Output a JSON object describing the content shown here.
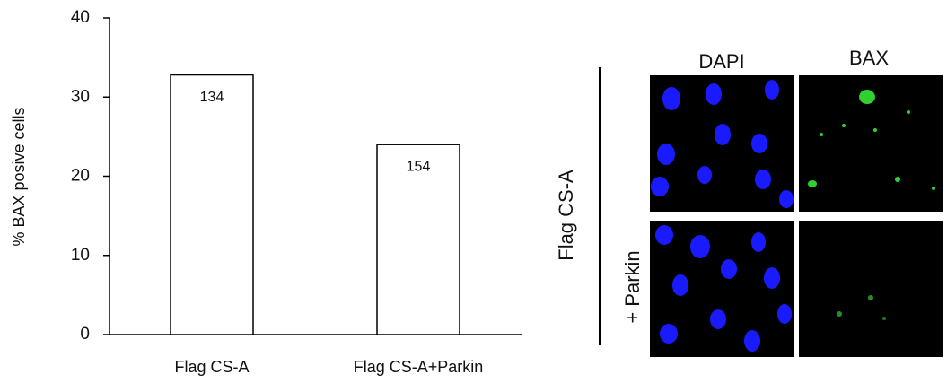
{
  "chart_data": {
    "type": "bar",
    "y_label": "% BAX posive cells",
    "categories": [
      "Flag CS-A",
      "Flag CS-A+Parkin"
    ],
    "values": [
      32.8,
      24
    ],
    "annotations": [
      "134",
      "154"
    ],
    "color": "#ffffff",
    "ylim": [
      0,
      40
    ],
    "yticks": [
      0,
      10,
      20,
      30,
      40
    ],
    "grid": false
  },
  "micrograph": {
    "columns": [
      "DAPI",
      "BAX"
    ],
    "row_labels": [
      "Flag CS-A",
      "+ Parkin"
    ]
  }
}
